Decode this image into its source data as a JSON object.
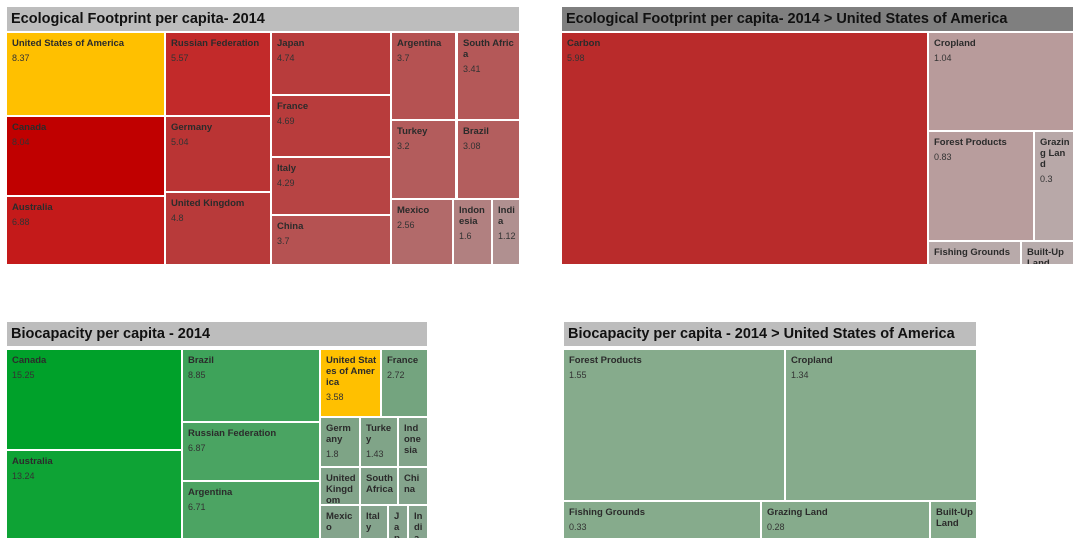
{
  "chart_data": [
    {
      "type": "treemap",
      "title": "Ecological Footprint per capita- 2014",
      "items": [
        {
          "name": "United States of America",
          "value": 8.37,
          "color": "#ffc000"
        },
        {
          "name": "Canada",
          "value": 8.04,
          "color": "#c00000"
        },
        {
          "name": "Australia",
          "value": 6.88,
          "color": "#c41a1a"
        },
        {
          "name": "Russian Federation",
          "value": 5.57,
          "color": "#c22a2a"
        },
        {
          "name": "Germany",
          "value": 5.04,
          "color": "#ba3434"
        },
        {
          "name": "United Kingdom",
          "value": 4.8,
          "color": "#b83a3a"
        },
        {
          "name": "Japan",
          "value": 4.74,
          "color": "#b83c3c"
        },
        {
          "name": "France",
          "value": 4.69,
          "color": "#b83c3c"
        },
        {
          "name": "Italy",
          "value": 4.29,
          "color": "#b74444"
        },
        {
          "name": "China",
          "value": 3.7,
          "color": "#b55252"
        },
        {
          "name": "Argentina",
          "value": 3.7,
          "color": "#b55252"
        },
        {
          "name": "South Africa",
          "value": 3.41,
          "color": "#b45858"
        },
        {
          "name": "Turkey",
          "value": 3.2,
          "color": "#b35c5c"
        },
        {
          "name": "Brazil",
          "value": 3.08,
          "color": "#b35e5e"
        },
        {
          "name": "Mexico",
          "value": 2.56,
          "color": "#b26a6a"
        },
        {
          "name": "Indonesia",
          "value": 1.6,
          "color": "#b18080"
        },
        {
          "name": "India",
          "value": 1.12,
          "color": "#b09090"
        }
      ]
    },
    {
      "type": "treemap",
      "title": "Ecological Footprint per capita- 2014 > United States of America",
      "items": [
        {
          "name": "Carbon",
          "value": 5.98,
          "color": "#b92b2b"
        },
        {
          "name": "Cropland",
          "value": 1.04,
          "color": "#b89b9b"
        },
        {
          "name": "Forest Products",
          "value": 0.83,
          "color": "#b89d9d"
        },
        {
          "name": "Grazing Land",
          "value": 0.3,
          "color": "#b8a8a8"
        },
        {
          "name": "Fishing Grounds",
          "value": null,
          "color": "#b8aaaa"
        },
        {
          "name": "Built-Up Land",
          "value": null,
          "color": "#b8acac"
        }
      ]
    },
    {
      "type": "treemap",
      "title": "Biocapacity per capita - 2014",
      "items": [
        {
          "name": "Canada",
          "value": 15.25,
          "color": "#00a12a"
        },
        {
          "name": "Australia",
          "value": 13.24,
          "color": "#0ea335"
        },
        {
          "name": "Brazil",
          "value": 8.85,
          "color": "#3ea35a"
        },
        {
          "name": "Russian Federation",
          "value": 6.87,
          "color": "#4aa462"
        },
        {
          "name": "Argentina",
          "value": 6.71,
          "color": "#4ca463"
        },
        {
          "name": "United States of America",
          "value": 3.58,
          "color": "#ffc000"
        },
        {
          "name": "France",
          "value": 2.72,
          "color": "#74a47f"
        },
        {
          "name": "Germany",
          "value": 1.8,
          "color": "#7ea486"
        },
        {
          "name": "Turkey",
          "value": 1.43,
          "color": "#80a488"
        },
        {
          "name": "Indonesia",
          "value": null,
          "color": "#82a48a"
        },
        {
          "name": "United Kingdom",
          "value": null,
          "color": "#82a48a"
        },
        {
          "name": "South Africa",
          "value": null,
          "color": "#83a48b"
        },
        {
          "name": "China",
          "value": null,
          "color": "#84a48c"
        },
        {
          "name": "Mexico",
          "value": null,
          "color": "#84a48c"
        },
        {
          "name": "Italy",
          "value": null,
          "color": "#85a48d"
        },
        {
          "name": "Japan",
          "value": null,
          "color": "#86a48e"
        },
        {
          "name": "India",
          "value": null,
          "color": "#86a48e"
        }
      ]
    },
    {
      "type": "treemap",
      "title": "Biocapacity per capita - 2014 > United States of America",
      "items": [
        {
          "name": "Forest Products",
          "value": 1.55,
          "color": "#86ab8c"
        },
        {
          "name": "Cropland",
          "value": 1.34,
          "color": "#86ab8c"
        },
        {
          "name": "Fishing Grounds",
          "value": 0.33,
          "color": "#86ab8c"
        },
        {
          "name": "Grazing Land",
          "value": 0.28,
          "color": "#86ab8c"
        },
        {
          "name": "Built-Up Land",
          "value": null,
          "color": "#86ab8c"
        }
      ]
    }
  ]
}
